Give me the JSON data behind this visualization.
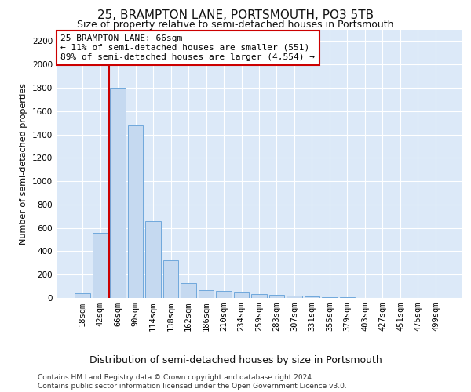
{
  "title": "25, BRAMPTON LANE, PORTSMOUTH, PO3 5TB",
  "subtitle": "Size of property relative to semi-detached houses in Portsmouth",
  "xlabel": "Distribution of semi-detached houses by size in Portsmouth",
  "ylabel": "Number of semi-detached properties",
  "categories": [
    "18sqm",
    "42sqm",
    "66sqm",
    "90sqm",
    "114sqm",
    "138sqm",
    "162sqm",
    "186sqm",
    "210sqm",
    "234sqm",
    "259sqm",
    "283sqm",
    "307sqm",
    "331sqm",
    "355sqm",
    "379sqm",
    "403sqm",
    "427sqm",
    "451sqm",
    "475sqm",
    "499sqm"
  ],
  "values": [
    40,
    560,
    1800,
    1480,
    660,
    320,
    130,
    65,
    60,
    50,
    35,
    30,
    20,
    15,
    8,
    5,
    3,
    2,
    1,
    1,
    0
  ],
  "bar_color": "#c5d9f0",
  "bar_edge_color": "#6fa8dc",
  "highlight_index": 2,
  "highlight_line_color": "#cc0000",
  "annotation_text": "25 BRAMPTON LANE: 66sqm\n← 11% of semi-detached houses are smaller (551)\n89% of semi-detached houses are larger (4,554) →",
  "annotation_box_color": "#ffffff",
  "annotation_box_edge_color": "#cc0000",
  "ylim": [
    0,
    2300
  ],
  "yticks": [
    0,
    200,
    400,
    600,
    800,
    1000,
    1200,
    1400,
    1600,
    1800,
    2000,
    2200
  ],
  "background_color": "#dce9f8",
  "footer_text": "Contains HM Land Registry data © Crown copyright and database right 2024.\nContains public sector information licensed under the Open Government Licence v3.0.",
  "title_fontsize": 11,
  "subtitle_fontsize": 9,
  "ylabel_fontsize": 8,
  "xlabel_fontsize": 9,
  "tick_fontsize": 7.5,
  "annotation_fontsize": 8,
  "footer_fontsize": 6.5
}
